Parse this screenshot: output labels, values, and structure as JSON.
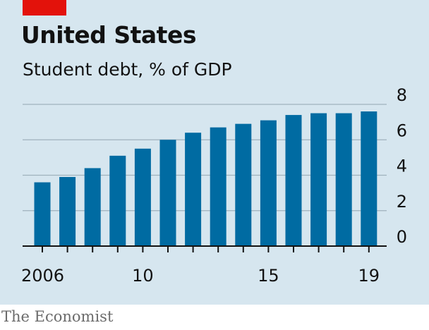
{
  "header": {
    "title": "United States",
    "subtitle": "Student debt, % of GDP"
  },
  "footer": {
    "source": "The Economist"
  },
  "colors": {
    "bar": "#006ba2",
    "accent": "#e3120b",
    "background": "#d6e6ef",
    "grid": "#9fb2bd",
    "axis": "#121212"
  },
  "chart_data": {
    "type": "bar",
    "title": "United States",
    "subtitle": "Student debt, % of GDP",
    "xlabel": "",
    "ylabel": "",
    "categories": [
      "2006",
      "2007",
      "2008",
      "2009",
      "2010",
      "2011",
      "2012",
      "2013",
      "2014",
      "2015",
      "2016",
      "2017",
      "2018",
      "2019"
    ],
    "values": [
      3.6,
      3.9,
      4.4,
      5.1,
      5.5,
      6.0,
      6.4,
      6.7,
      6.9,
      7.1,
      7.4,
      7.5,
      7.5,
      7.6
    ],
    "x_tick_labels": [
      {
        "category": "2006",
        "label": "2006"
      },
      {
        "category": "2010",
        "label": "10"
      },
      {
        "category": "2015",
        "label": "15"
      },
      {
        "category": "2019",
        "label": "19"
      }
    ],
    "y_ticks": [
      0,
      2,
      4,
      6,
      8
    ],
    "ylim": [
      0,
      8
    ],
    "grid": true,
    "y_axis_side": "right"
  }
}
